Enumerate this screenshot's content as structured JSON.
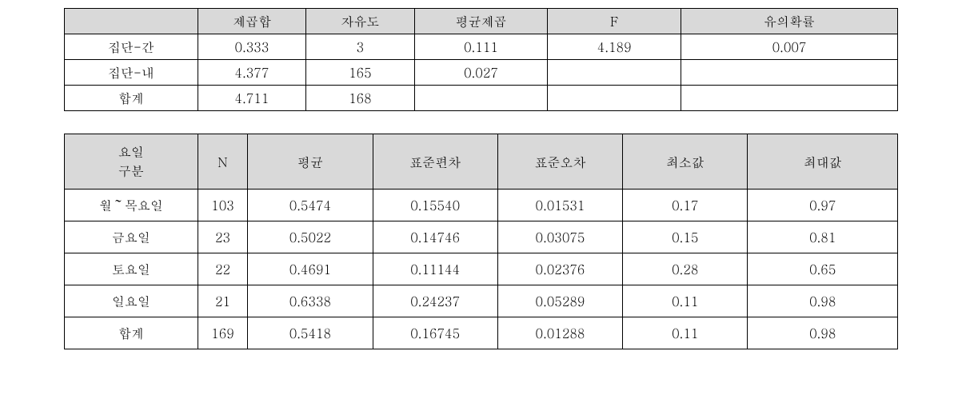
{
  "table1": {
    "type": "table",
    "header_bg": "#d9d9d9",
    "border_color": "#000000",
    "background_color": "#ffffff",
    "font_family": "Batang/Times",
    "columns": [
      "",
      "제곱합",
      "자유도",
      "평균제곱",
      "F",
      "유의확률"
    ],
    "rows": [
      [
        "집단-간",
        "0.333",
        "3",
        "0.111",
        "4.189",
        "0.007"
      ],
      [
        "집단-내",
        "4.377",
        "165",
        "0.027",
        "",
        ""
      ],
      [
        "합계",
        "4.711",
        "168",
        "",
        "",
        ""
      ]
    ],
    "col_widths_pct": [
      16,
      13,
      13,
      16,
      16,
      26
    ],
    "cell_align": "center"
  },
  "table2": {
    "type": "table",
    "header_bg": "#d9d9d9",
    "border_color": "#000000",
    "background_color": "#ffffff",
    "font_family": "Batang/Times",
    "header_line1": "요일",
    "header_line2": "구분",
    "columns": [
      "요일\n구분",
      "N",
      "평균",
      "표준편차",
      "표준오차",
      "최소값",
      "최대값"
    ],
    "rows": [
      [
        "월～목요일",
        "103",
        "0.5474",
        "0.15540",
        "0.01531",
        "0.17",
        "0.97"
      ],
      [
        "금요일",
        "23",
        "0.5022",
        "0.14746",
        "0.03075",
        "0.15",
        "0.81"
      ],
      [
        "토요일",
        "22",
        "0.4691",
        "0.11144",
        "0.02376",
        "0.28",
        "0.65"
      ],
      [
        "일요일",
        "21",
        "0.6338",
        "0.24237",
        "0.05289",
        "0.11",
        "0.98"
      ],
      [
        "합계",
        "169",
        "0.5418",
        "0.16745",
        "0.01288",
        "0.11",
        "0.98"
      ]
    ],
    "col_widths_pct": [
      16,
      6,
      15,
      15,
      15,
      15,
      18
    ],
    "cell_align": "center"
  }
}
